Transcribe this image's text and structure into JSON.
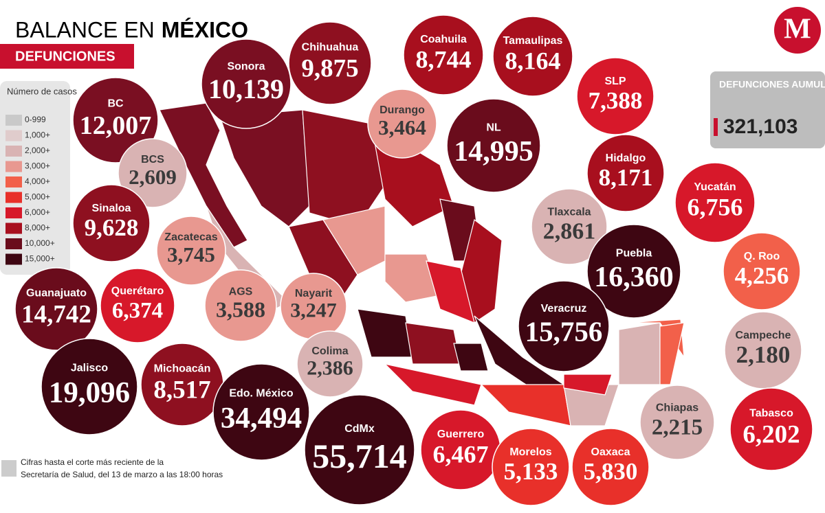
{
  "header": {
    "title_light": "BALANCE EN",
    "title_bold": "MÉXICO",
    "subtitle": "DEFUNCIONES",
    "logo": "M"
  },
  "legend": {
    "title": "Número de casos",
    "items": [
      "0-999",
      "1,000+",
      "2,000+",
      "3,000+",
      "4,000+",
      "5,000+",
      "6,000+",
      "8,000+",
      "10,000+",
      "15,000+"
    ]
  },
  "total": {
    "label": "DEFUNCIONES AUMULADAS:",
    "value": "321,103"
  },
  "states": [
    {
      "name": "BC",
      "value": "12,007"
    },
    {
      "name": "Sonora",
      "value": "10,139"
    },
    {
      "name": "Chihuahua",
      "value": "9,875"
    },
    {
      "name": "Coahuila",
      "value": "8,744"
    },
    {
      "name": "Tamaulipas",
      "value": "8,164"
    },
    {
      "name": "SLP",
      "value": "7,388"
    },
    {
      "name": "Durango",
      "value": "3,464"
    },
    {
      "name": "NL",
      "value": "14,995"
    },
    {
      "name": "BCS",
      "value": "2,609"
    },
    {
      "name": "Hidalgo",
      "value": "8,171"
    },
    {
      "name": "Yucatán",
      "value": "6,756"
    },
    {
      "name": "Sinaloa",
      "value": "9,628"
    },
    {
      "name": "Zacatecas",
      "value": "3,745"
    },
    {
      "name": "Tlaxcala",
      "value": "2,861"
    },
    {
      "name": "Puebla",
      "value": "16,360"
    },
    {
      "name": "Q. Roo",
      "value": "4,256"
    },
    {
      "name": "Guanajuato",
      "value": "14,742"
    },
    {
      "name": "Querétaro",
      "value": "6,374"
    },
    {
      "name": "AGS",
      "value": "3,588"
    },
    {
      "name": "Nayarit",
      "value": "3,247"
    },
    {
      "name": "Veracruz",
      "value": "15,756"
    },
    {
      "name": "Campeche",
      "value": "2,180"
    },
    {
      "name": "Colima",
      "value": "2,386"
    },
    {
      "name": "Jalisco",
      "value": "19,096"
    },
    {
      "name": "Michoacán",
      "value": "8,517"
    },
    {
      "name": "Edo. México",
      "value": "34,494"
    },
    {
      "name": "CdMx",
      "value": "55,714"
    },
    {
      "name": "Guerrero",
      "value": "6,467"
    },
    {
      "name": "Morelos",
      "value": "5,133"
    },
    {
      "name": "Oaxaca",
      "value": "5,830"
    },
    {
      "name": "Chiapas",
      "value": "2,215"
    },
    {
      "name": "Tabasco",
      "value": "6,202"
    }
  ],
  "footnote": {
    "line1": "Cifras hasta el corte más reciente de la",
    "line2": "Secretaría de Salud, del 13 de marzo a las 18:00 horas"
  }
}
